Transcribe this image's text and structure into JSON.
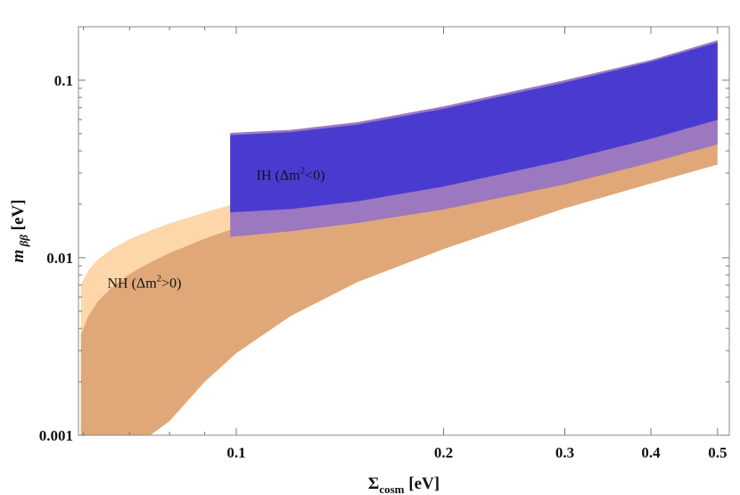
{
  "chart_data": {
    "type": "area",
    "title": "",
    "xlabel": {
      "main": "Σ",
      "sub": "cosm",
      "unit": "[eV]"
    },
    "ylabel": {
      "main": "m",
      "sub": "ββ",
      "unit": "[eV]"
    },
    "xscale": "log",
    "yscale": "log",
    "xlim": [
      0.059,
      0.52
    ],
    "ylim": [
      0.001,
      0.2
    ],
    "grid": false,
    "x_ticks": [
      {
        "value": 0.1,
        "label": "0.1"
      },
      {
        "value": 0.2,
        "label": "0.2"
      },
      {
        "value": 0.3,
        "label": "0.3"
      },
      {
        "value": 0.4,
        "label": "0.4"
      },
      {
        "value": 0.5,
        "label": "0.5"
      }
    ],
    "y_ticks": [
      {
        "value": 0.001,
        "label": "0.001"
      },
      {
        "value": 0.01,
        "label": "0.01"
      },
      {
        "value": 0.1,
        "label": "0.1"
      }
    ],
    "annotations": [
      {
        "id": "nh",
        "text": "NH (Δm²>0)",
        "main": "NH (Δm",
        "sup": "2",
        "tail": ">0)",
        "x": 0.065,
        "y": 0.0068
      },
      {
        "id": "ih",
        "text": "IH (Δm²<0)",
        "main": "IH (Δm",
        "sup": "2",
        "tail": "<0)",
        "x": 0.107,
        "y": 0.0275
      }
    ],
    "series": [
      {
        "id": "nh-outer",
        "color": "#fdd6aa",
        "x": [
          0.0595,
          0.061,
          0.063,
          0.066,
          0.07,
          0.075,
          0.08,
          0.09,
          0.1,
          0.12,
          0.15,
          0.2,
          0.3,
          0.4,
          0.5
        ],
        "upper": [
          0.0071,
          0.0085,
          0.0098,
          0.0112,
          0.0127,
          0.0142,
          0.0156,
          0.018,
          0.0202,
          0.0241,
          0.0293,
          0.0378,
          0.0556,
          0.0735,
          0.0915
        ],
        "lower": [
          null,
          null,
          null,
          null,
          0.001,
          0.0015,
          0.0022,
          0.0037,
          0.0052,
          0.0079,
          0.0115,
          0.0165,
          0.0258,
          0.0343,
          0.0423
        ]
      },
      {
        "id": "nh-inner",
        "color": "#e0a878",
        "x": [
          0.0595,
          0.061,
          0.063,
          0.066,
          0.07,
          0.075,
          0.08,
          0.09,
          0.1,
          0.12,
          0.15,
          0.2,
          0.3,
          0.4,
          0.5
        ],
        "upper": [
          0.0037,
          0.0047,
          0.0057,
          0.0068,
          0.0081,
          0.0094,
          0.0106,
          0.0128,
          0.0148,
          0.0185,
          0.0236,
          0.0316,
          0.0477,
          0.0637,
          0.0794
        ],
        "lower": [
          0.001,
          0.001,
          0.001,
          0.001,
          0.001,
          0.001,
          0.0012,
          0.002,
          0.0029,
          0.0047,
          0.0073,
          0.0112,
          0.019,
          0.0262,
          0.0335
        ]
      },
      {
        "id": "ih-light",
        "color": "#9c78c0",
        "x": [
          0.098,
          0.12,
          0.15,
          0.2,
          0.3,
          0.4,
          0.5
        ],
        "upper": [
          0.0505,
          0.0525,
          0.058,
          0.0712,
          0.1,
          0.13,
          0.168
        ],
        "lower": [
          0.0131,
          0.0141,
          0.0157,
          0.0187,
          0.0259,
          0.0343,
          0.0435
        ]
      },
      {
        "id": "ih-dark",
        "color": "#4a3bd0",
        "x": [
          0.098,
          0.12,
          0.15,
          0.2,
          0.3,
          0.4,
          0.5
        ],
        "upper": [
          0.049,
          0.051,
          0.0562,
          0.069,
          0.097,
          0.127,
          0.163
        ],
        "lower": [
          0.018,
          0.0188,
          0.0208,
          0.0252,
          0.0354,
          0.0468,
          0.0598
        ]
      }
    ]
  }
}
